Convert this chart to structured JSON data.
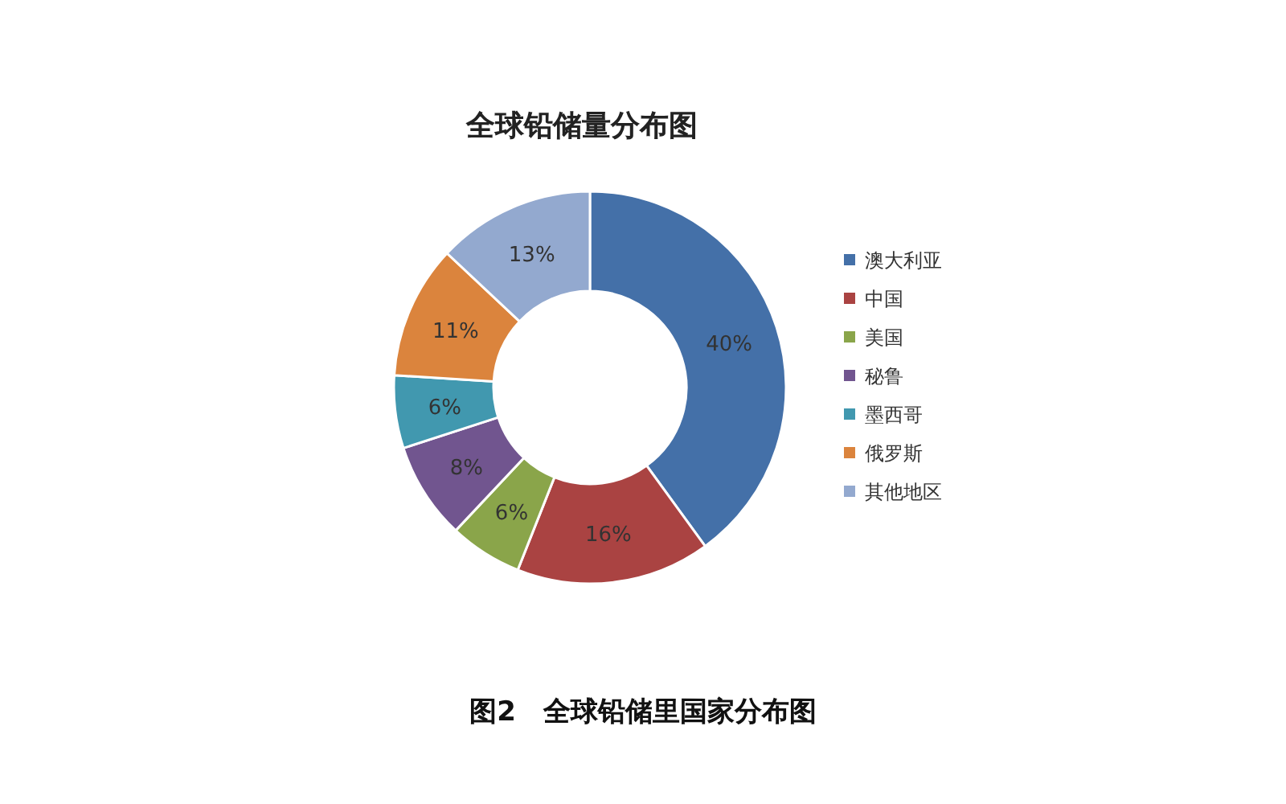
{
  "chart_data": {
    "type": "donut",
    "title": "全球铅储量分布图",
    "categories": [
      "澳大利亚",
      "中国",
      "美国",
      "秘鲁",
      "墨西哥",
      "俄罗斯",
      "其他地区"
    ],
    "values": [
      40,
      16,
      6,
      8,
      6,
      11,
      13
    ],
    "colors": [
      "#4470a8",
      "#aa4342",
      "#8aa54a",
      "#71558f",
      "#4198af",
      "#db843d",
      "#93a9cf"
    ],
    "value_labels": [
      "40%",
      "16%",
      "6%",
      "8%",
      "6%",
      "11%",
      "13%"
    ],
    "legend": "right",
    "annotations": [
      "图2　全球铅储里国家分布图"
    ]
  }
}
